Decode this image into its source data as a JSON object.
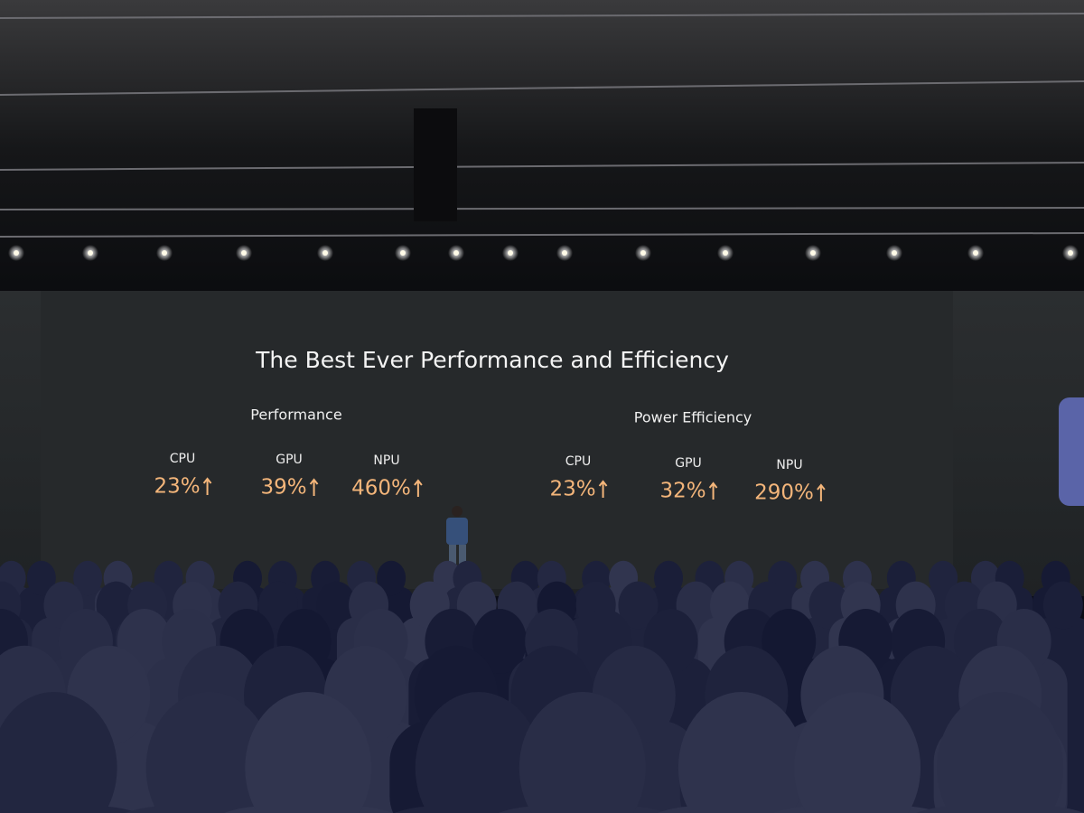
{
  "slide": {
    "title": "The Best Ever Performance and Efficiency",
    "groups": [
      {
        "heading": "Performance",
        "items": [
          {
            "label": "CPU",
            "value": "23%"
          },
          {
            "label": "GPU",
            "value": "39%"
          },
          {
            "label": "NPU",
            "value": "460%"
          }
        ]
      },
      {
        "heading": "Power Efficiency",
        "items": [
          {
            "label": "CPU",
            "value": "23%"
          },
          {
            "label": "GPU",
            "value": "32%"
          },
          {
            "label": "NPU",
            "value": "290%"
          }
        ]
      }
    ]
  }
}
